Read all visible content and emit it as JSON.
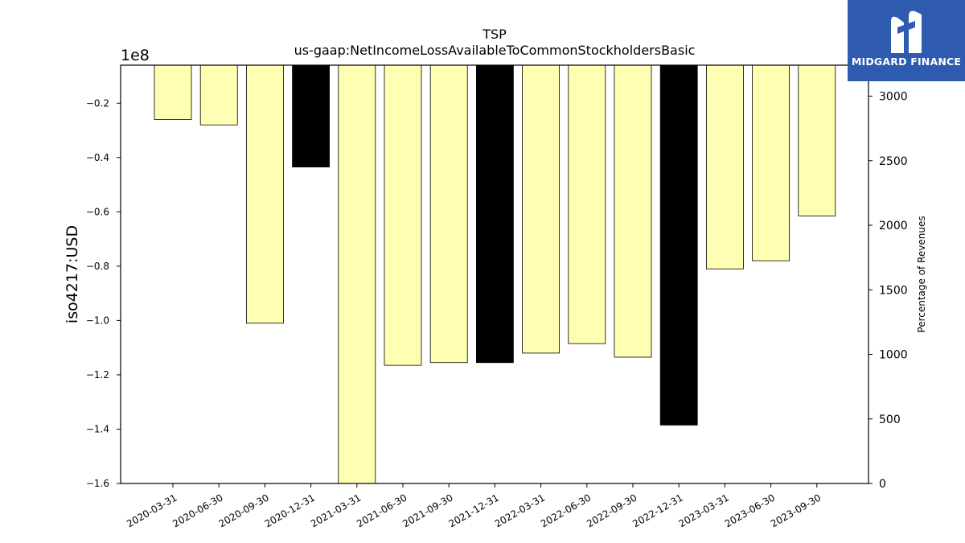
{
  "chart_data": {
    "type": "bar",
    "title": "TSP",
    "subtitle": "us-gaap:NetIncomeLossAvailableToCommonStockholdersBasic",
    "ylabel": "iso4217:USD",
    "y_offset_label": "1e8",
    "ylabel_right": "Percentage of Revenues",
    "categories": [
      "2020-03-31",
      "2020-06-30",
      "2020-09-30",
      "2020-12-31",
      "2021-03-31",
      "2021-06-30",
      "2021-09-30",
      "2021-12-31",
      "2022-03-31",
      "2022-06-30",
      "2022-09-30",
      "2022-12-31",
      "2023-03-31",
      "2023-06-30",
      "2023-09-30"
    ],
    "values": [
      -0.26,
      -0.28,
      -1.01,
      -0.435,
      -1.6,
      -1.165,
      -1.155,
      -1.155,
      -1.12,
      -1.085,
      -1.135,
      -1.385,
      -0.81,
      -0.78,
      -0.615
    ],
    "highlight": [
      false,
      false,
      false,
      true,
      false,
      false,
      false,
      true,
      false,
      false,
      false,
      true,
      false,
      false,
      false
    ],
    "ylim": [
      -1.6,
      -0.06
    ],
    "yticks": [
      -0.2,
      -0.4,
      -0.6,
      -0.8,
      -1.0,
      -1.2,
      -1.4,
      -1.6
    ],
    "ytick_labels": [
      "−0.2",
      "−0.4",
      "−0.6",
      "−0.8",
      "−1.0",
      "−1.2",
      "−1.4",
      "−1.6"
    ],
    "ylim_right": [
      0,
      3240
    ],
    "yticks_right": [
      0,
      500,
      1000,
      1500,
      2000,
      2500,
      3000
    ],
    "colors": {
      "bar": "#ffffb3",
      "highlight": "#000000",
      "edge": "#000000"
    },
    "grid": false
  },
  "logo": {
    "text": "MIDGARD FINANCE",
    "background": "#2e5bb0"
  }
}
